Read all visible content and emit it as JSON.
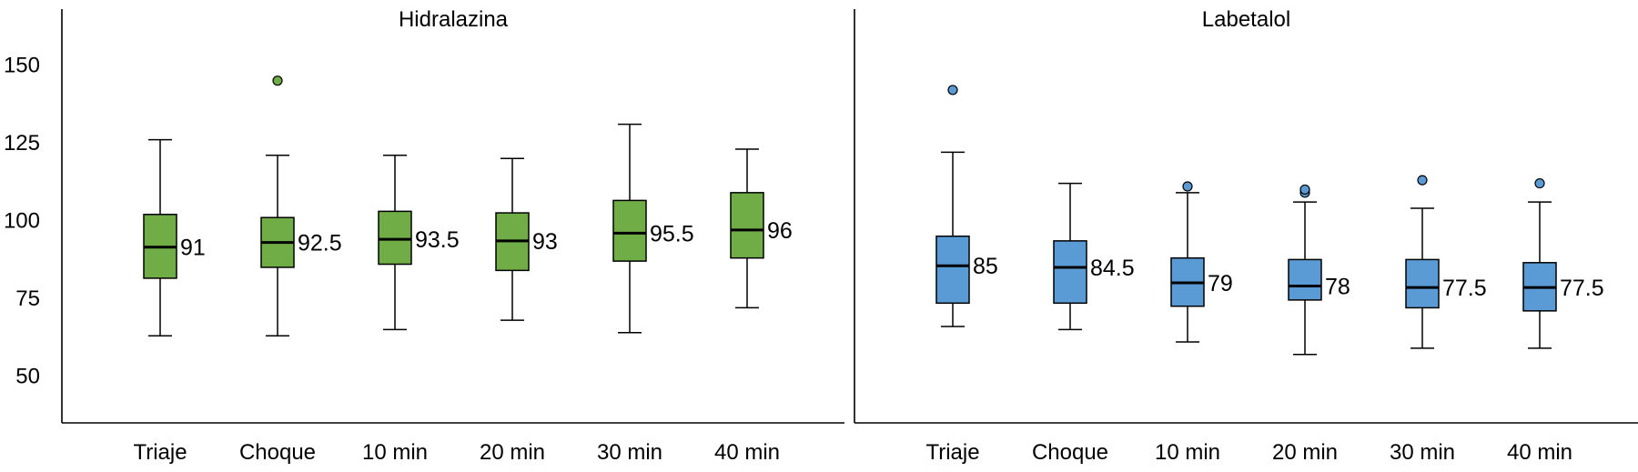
{
  "chart_data": {
    "type": "boxplot",
    "ylim": [
      35,
      168
    ],
    "y_ticks": [
      50,
      75,
      100,
      125,
      150
    ],
    "y_tick_labels": [
      "50",
      "75",
      "100",
      "125",
      "150"
    ],
    "categories": [
      "Triaje",
      "Choque",
      "10 min",
      "20 min",
      "30 min",
      "40 min"
    ],
    "panels": [
      {
        "title": "Hidralazina",
        "color": "#70ad47",
        "boxes": [
          {
            "category": "Triaje",
            "min": 63,
            "q1": 81.5,
            "median": 91.5,
            "q3": 102,
            "max": 126,
            "outliers": [],
            "label": "91"
          },
          {
            "category": "Choque",
            "min": 63,
            "q1": 85,
            "median": 93,
            "q3": 101,
            "max": 121,
            "outliers": [
              145
            ],
            "label": "92.5"
          },
          {
            "category": "10 min",
            "min": 65,
            "q1": 86,
            "median": 94,
            "q3": 103,
            "max": 121,
            "outliers": [],
            "label": "93.5"
          },
          {
            "category": "20 min",
            "min": 68,
            "q1": 84,
            "median": 93.5,
            "q3": 102.5,
            "max": 120,
            "outliers": [],
            "label": "93"
          },
          {
            "category": "30 min",
            "min": 64,
            "q1": 87,
            "median": 96,
            "q3": 106.5,
            "max": 131,
            "outliers": [],
            "label": "95.5"
          },
          {
            "category": "40 min",
            "min": 72,
            "q1": 88,
            "median": 97,
            "q3": 109,
            "max": 123,
            "outliers": [],
            "label": "96"
          }
        ]
      },
      {
        "title": "Labetalol",
        "color": "#5b9bd5",
        "boxes": [
          {
            "category": "Triaje",
            "min": 66,
            "q1": 73.5,
            "median": 85.5,
            "q3": 95,
            "max": 122,
            "outliers": [
              142
            ],
            "label": "85"
          },
          {
            "category": "Choque",
            "min": 65,
            "q1": 73.5,
            "median": 85,
            "q3": 93.5,
            "max": 112,
            "outliers": [],
            "label": "84.5"
          },
          {
            "category": "10 min",
            "min": 61,
            "q1": 72.5,
            "median": 80,
            "q3": 88,
            "max": 109,
            "outliers": [
              111
            ],
            "label": "79"
          },
          {
            "category": "20 min",
            "min": 57,
            "q1": 74.5,
            "median": 79,
            "q3": 87.5,
            "max": 106,
            "outliers": [
              109,
              110
            ],
            "label": "78"
          },
          {
            "category": "30 min",
            "min": 59,
            "q1": 72,
            "median": 78.5,
            "q3": 87.5,
            "max": 104,
            "outliers": [
              113
            ],
            "label": "77.5"
          },
          {
            "category": "40 min",
            "min": 59,
            "q1": 71,
            "median": 78.5,
            "q3": 86.5,
            "max": 106,
            "outliers": [
              112
            ],
            "label": "77.5"
          }
        ]
      }
    ]
  }
}
